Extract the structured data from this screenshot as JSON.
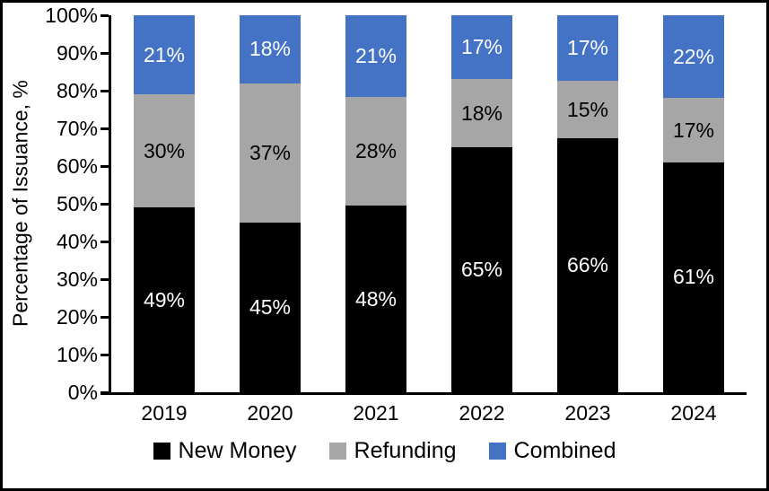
{
  "window": {
    "background": "#ffffff",
    "border_color": "#000000"
  },
  "chart_data": {
    "type": "bar",
    "stacked": true,
    "title": "",
    "xlabel": "",
    "ylabel": "Percentage of Issuance, %",
    "categories": [
      "2019",
      "2020",
      "2021",
      "2022",
      "2023",
      "2024"
    ],
    "series": [
      {
        "name": "New Money",
        "color": "#000000",
        "label_color": "#ffffff",
        "values": [
          49,
          45,
          48,
          65,
          66,
          61
        ]
      },
      {
        "name": "Refunding",
        "color": "#A6A6A6",
        "label_color": "#000000",
        "values": [
          30,
          37,
          28,
          18,
          15,
          17
        ]
      },
      {
        "name": "Combined",
        "color": "#4472C4",
        "label_color": "#ffffff",
        "values": [
          21,
          18,
          21,
          17,
          17,
          22
        ]
      }
    ],
    "label_suffix": "%",
    "y_ticks": [
      "0%",
      "10%",
      "20%",
      "30%",
      "40%",
      "50%",
      "60%",
      "70%",
      "80%",
      "90%",
      "100%"
    ],
    "ylim": [
      0,
      100
    ],
    "grid": false,
    "legend_position": "bottom",
    "axis_color": "#000000"
  }
}
